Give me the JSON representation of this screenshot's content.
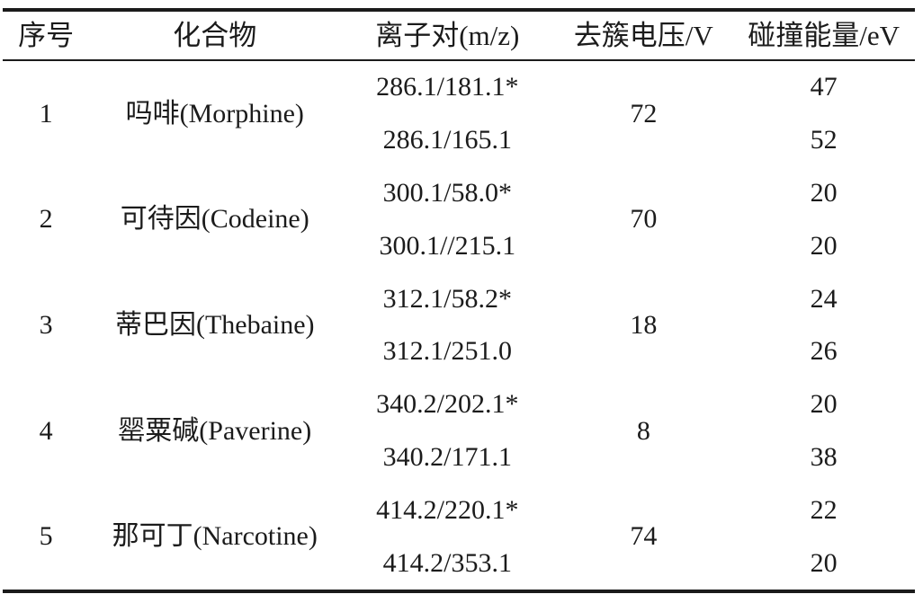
{
  "table": {
    "columns": [
      "序号",
      "化合物",
      "离子对(m/z)",
      "去簇电压/V",
      "碰撞能量/eV"
    ],
    "compounds": [
      {
        "no": "1",
        "name": "吗啡(Morphine)",
        "dp": "72",
        "ion_pairs": [
          {
            "pair": "286.1/181.1*",
            "ce": "47"
          },
          {
            "pair": "286.1/165.1",
            "ce": "52"
          }
        ]
      },
      {
        "no": "2",
        "name": "可待因(Codeine)",
        "dp": "70",
        "ion_pairs": [
          {
            "pair": "300.1/58.0*",
            "ce": "20"
          },
          {
            "pair": "300.1//215.1",
            "ce": "20"
          }
        ]
      },
      {
        "no": "3",
        "name": "蒂巴因(Thebaine)",
        "dp": "18",
        "ion_pairs": [
          {
            "pair": "312.1/58.2*",
            "ce": "24"
          },
          {
            "pair": "312.1/251.0",
            "ce": "26"
          }
        ]
      },
      {
        "no": "4",
        "name": "罂粟碱(Paverine)",
        "dp": "8",
        "ion_pairs": [
          {
            "pair": "340.2/202.1*",
            "ce": "20"
          },
          {
            "pair": "340.2/171.1",
            "ce": "38"
          }
        ]
      },
      {
        "no": "5",
        "name": "那可丁(Narcotine)",
        "dp": "74",
        "ion_pairs": [
          {
            "pair": "414.2/220.1*",
            "ce": "22"
          },
          {
            "pair": "414.2/353.1",
            "ce": "20"
          }
        ]
      }
    ]
  },
  "chart_data": {
    "type": "table",
    "title": "",
    "columns": [
      "序号",
      "化合物",
      "离子对(m/z)",
      "去簇电压/V",
      "碰撞能量/eV"
    ],
    "rows": [
      [
        "1",
        "吗啡(Morphine)",
        "286.1/181.1*",
        "72",
        "47"
      ],
      [
        "1",
        "吗啡(Morphine)",
        "286.1/165.1",
        "72",
        "52"
      ],
      [
        "2",
        "可待因(Codeine)",
        "300.1/58.0*",
        "70",
        "20"
      ],
      [
        "2",
        "可待因(Codeine)",
        "300.1//215.1",
        "70",
        "20"
      ],
      [
        "3",
        "蒂巴因(Thebaine)",
        "312.1/58.2*",
        "18",
        "24"
      ],
      [
        "3",
        "蒂巴因(Thebaine)",
        "312.1/251.0",
        "18",
        "26"
      ],
      [
        "4",
        "罂粟碱(Paverine)",
        "340.2/202.1*",
        "8",
        "20"
      ],
      [
        "4",
        "罂粟碱(Paverine)",
        "340.2/171.1",
        "8",
        "38"
      ],
      [
        "5",
        "那可丁(Narcotine)",
        "414.2/220.1*",
        "74",
        "22"
      ],
      [
        "5",
        "那可丁(Narcotine)",
        "414.2/353.1",
        "74",
        "20"
      ]
    ]
  }
}
